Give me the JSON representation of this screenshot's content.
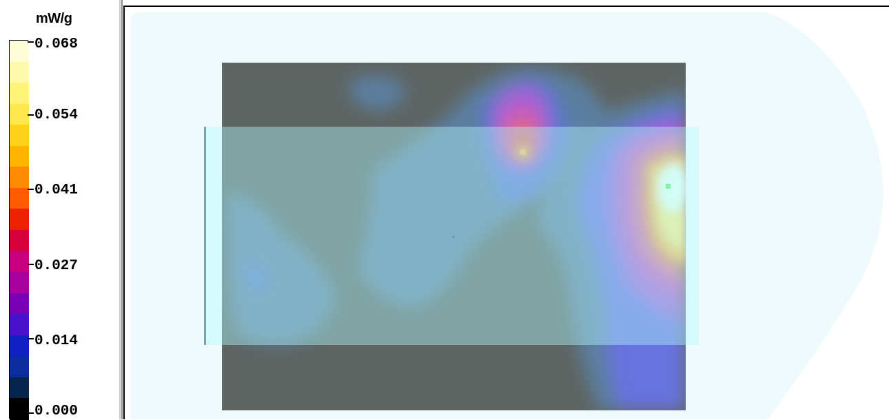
{
  "legend": {
    "unit": "mW/g",
    "ticks": [
      "0.068",
      "0.054",
      "0.041",
      "0.027",
      "0.014",
      "0.000"
    ],
    "colors": [
      "#fdfdd8",
      "#fff9a8",
      "#fff47a",
      "#ffe64c",
      "#ffd21a",
      "#ffb400",
      "#ff8c00",
      "#ff5a00",
      "#ee2200",
      "#d8003c",
      "#c80080",
      "#a8009c",
      "#7a00b8",
      "#4a10cc",
      "#1020c4",
      "#0a2c9c",
      "#06244e",
      "#000000"
    ]
  },
  "view": {
    "background_color": "#ffffff",
    "halo_color": "#eefafc",
    "board_color": "#5e6563",
    "phone_overlay_color": "#b2fafc",
    "hotspot_peak_color": "#e8fff2",
    "marker_color": "#5ef06e"
  }
}
